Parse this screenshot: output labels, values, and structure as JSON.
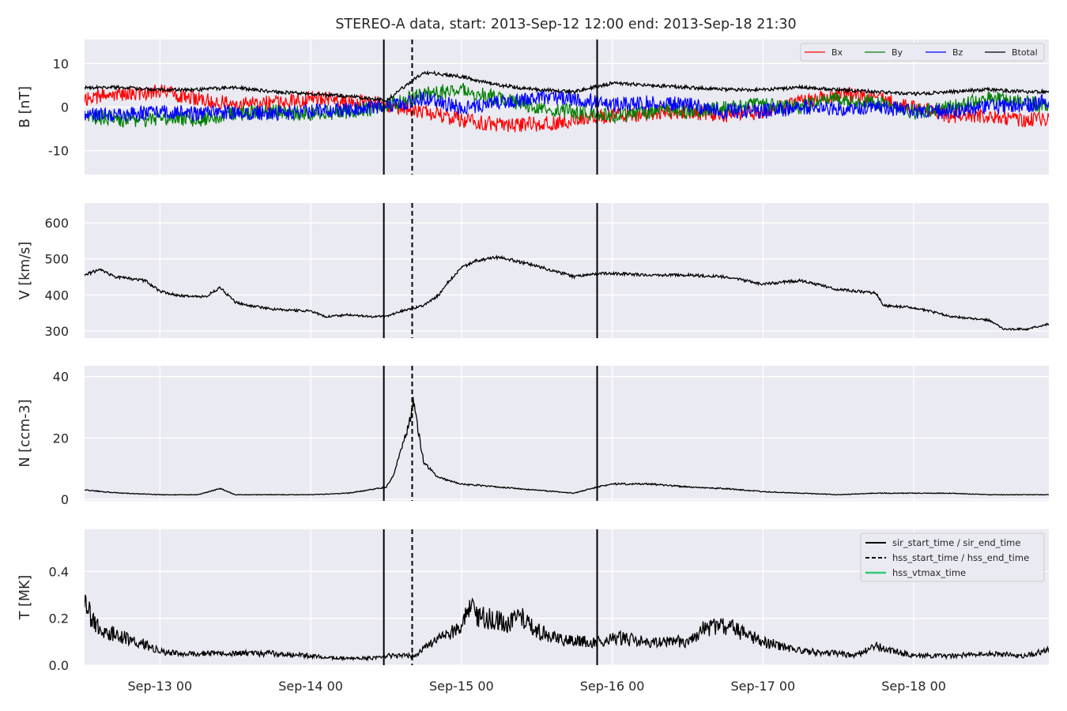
{
  "figure": {
    "title": "STEREO-A data, start: 2013-Sep-12 12:00  end: 2013-Sep-18 21:30"
  },
  "colors": {
    "panel_bg": "#EAEAF2",
    "grid": "#FFFFFF",
    "Bx": "#FF0000",
    "By": "#008000",
    "Bz": "#0000FF",
    "Btotal": "#000000",
    "hss_vtmax": "#2ECC71"
  },
  "chart_data": [
    {
      "type": "line",
      "panel": "B",
      "ylabel": "B [nT]",
      "ylim": [
        -15.5,
        15.5
      ],
      "yticks": [
        -10,
        0,
        10
      ],
      "legend_position": "top-right",
      "legend": [
        "Bx",
        "By",
        "Bz",
        "Btotal"
      ],
      "series": [
        {
          "name": "Bx",
          "color": "#FF0000",
          "x": [
            12.5,
            12.75,
            13.0,
            13.25,
            13.5,
            13.75,
            14.0,
            14.25,
            14.5,
            14.75,
            15.0,
            15.25,
            15.5,
            15.75,
            16.0,
            16.25,
            16.5,
            16.75,
            17.0,
            17.25,
            17.5,
            17.75,
            18.0,
            18.25,
            18.5,
            18.75,
            18.9
          ],
          "y": [
            2,
            3,
            3.5,
            2,
            0.5,
            1,
            2,
            1.5,
            0.5,
            -1,
            -3,
            -4,
            -4,
            -3,
            -2,
            -1.5,
            -1,
            -2,
            -1,
            1,
            3,
            2,
            0,
            -2,
            -2,
            -3,
            -2.5
          ]
        },
        {
          "name": "By",
          "color": "#008000",
          "x": [
            12.5,
            12.75,
            13.0,
            13.25,
            13.5,
            13.75,
            14.0,
            14.25,
            14.5,
            14.75,
            15.0,
            15.25,
            15.5,
            15.75,
            16.0,
            16.25,
            16.5,
            16.75,
            17.0,
            17.25,
            17.5,
            17.75,
            18.0,
            18.25,
            18.5,
            18.75,
            18.9
          ],
          "y": [
            -2,
            -3,
            -2.5,
            -3,
            -1.5,
            -1,
            -1.5,
            -1,
            0,
            3,
            4,
            2,
            0,
            -1,
            -2,
            -1,
            -1,
            0,
            0.5,
            0,
            2,
            1,
            -1,
            0,
            2,
            1,
            0
          ]
        },
        {
          "name": "Bz",
          "color": "#0000FF",
          "x": [
            12.5,
            12.75,
            13.0,
            13.25,
            13.5,
            13.75,
            14.0,
            14.25,
            14.5,
            14.75,
            15.0,
            15.25,
            15.5,
            15.75,
            16.0,
            16.25,
            16.5,
            16.75,
            17.0,
            17.25,
            17.5,
            17.75,
            18.0,
            18.25,
            18.5,
            18.75,
            18.9
          ],
          "y": [
            -1.5,
            -2,
            -1,
            -1.5,
            -1,
            -1.5,
            -1,
            -0.5,
            0,
            2,
            0,
            1,
            2,
            2,
            0.5,
            1,
            0.5,
            -1,
            -1,
            0,
            -0.5,
            0,
            -1,
            -1,
            0,
            0.5,
            1.5
          ]
        },
        {
          "name": "Btotal",
          "color": "#000000",
          "x": [
            12.5,
            12.75,
            13.0,
            13.25,
            13.5,
            13.75,
            14.0,
            14.25,
            14.5,
            14.75,
            15.0,
            15.25,
            15.5,
            15.75,
            16.0,
            16.25,
            16.5,
            16.75,
            17.0,
            17.25,
            17.5,
            17.75,
            18.0,
            18.25,
            18.5,
            18.75,
            18.9
          ],
          "y": [
            4.5,
            4.5,
            4,
            4,
            4.5,
            3.5,
            3,
            2.5,
            1.5,
            8,
            7,
            5,
            4,
            3.5,
            5.5,
            5,
            4.5,
            4,
            4,
            4.5,
            4,
            3.5,
            3,
            3.5,
            4,
            3.5,
            3.5
          ]
        }
      ]
    },
    {
      "type": "line",
      "panel": "V",
      "ylabel": "V [km/s]",
      "ylim": [
        280,
        655
      ],
      "yticks": [
        300,
        400,
        500,
        600
      ],
      "series": [
        {
          "name": "",
          "color": "#000000",
          "x": [
            12.5,
            12.6,
            12.7,
            12.8,
            12.9,
            13.0,
            13.1,
            13.2,
            13.3,
            13.4,
            13.5,
            13.6,
            13.75,
            14.0,
            14.1,
            14.25,
            14.4,
            14.5,
            14.6,
            14.75,
            14.85,
            14.9,
            15.0,
            15.1,
            15.25,
            15.5,
            15.75,
            15.9,
            16.0,
            16.25,
            16.5,
            16.75,
            17.0,
            17.25,
            17.5,
            17.75,
            17.8,
            18.0,
            18.25,
            18.5,
            18.6,
            18.75,
            18.9
          ],
          "y": [
            455,
            470,
            450,
            445,
            440,
            410,
            400,
            395,
            395,
            420,
            380,
            370,
            360,
            355,
            340,
            345,
            340,
            340,
            355,
            370,
            400,
            430,
            475,
            495,
            505,
            480,
            450,
            460,
            460,
            455,
            455,
            450,
            430,
            440,
            415,
            405,
            370,
            365,
            340,
            330,
            305,
            305,
            320
          ]
        }
      ]
    },
    {
      "type": "line",
      "panel": "N",
      "ylabel": "N [ccm-3]",
      "ylim": [
        -0.5,
        43.5
      ],
      "yticks": [
        0,
        20,
        40
      ],
      "series": [
        {
          "name": "",
          "color": "#000000",
          "x": [
            12.5,
            12.75,
            13.0,
            13.25,
            13.4,
            13.5,
            13.75,
            14.0,
            14.25,
            14.5,
            14.55,
            14.6,
            14.65,
            14.68,
            14.7,
            14.75,
            14.85,
            15.0,
            15.25,
            15.5,
            15.75,
            15.9,
            16.0,
            16.25,
            16.5,
            16.75,
            17.0,
            17.25,
            17.5,
            17.75,
            18.0,
            18.25,
            18.5,
            18.9
          ],
          "y": [
            3,
            2,
            1.5,
            1.5,
            3.5,
            1.5,
            1.5,
            1.5,
            2,
            4,
            8,
            16,
            24,
            32,
            26,
            12,
            7,
            5,
            4,
            3,
            2,
            4,
            5,
            5,
            4,
            3.5,
            2.5,
            2,
            1.5,
            2,
            2,
            2,
            1.5,
            1.5
          ]
        }
      ]
    },
    {
      "type": "line",
      "panel": "T",
      "ylabel": "T [MK]",
      "ylim": [
        0,
        0.58
      ],
      "yticks": [
        0.0,
        0.2,
        0.4
      ],
      "ytick_labels": [
        "0.0",
        "0.2",
        "0.4"
      ],
      "legend_position": "top-right",
      "legend": [
        "sir_start_time / sir_end_time",
        "hss_start_time / hss_end_time",
        "hss_vtmax_time"
      ],
      "series": [
        {
          "name": "",
          "color": "#000000",
          "x": [
            12.5,
            12.6,
            12.75,
            12.9,
            13.0,
            13.1,
            13.25,
            13.5,
            13.75,
            14.0,
            14.25,
            14.4,
            14.5,
            14.6,
            14.7,
            14.8,
            14.9,
            15.0,
            15.05,
            15.1,
            15.2,
            15.3,
            15.4,
            15.5,
            15.6,
            15.75,
            15.9,
            16.0,
            16.25,
            16.4,
            16.5,
            16.6,
            16.75,
            17.0,
            17.25,
            17.5,
            17.6,
            17.75,
            18.0,
            18.25,
            18.5,
            18.75,
            18.9
          ],
          "y": [
            0.25,
            0.15,
            0.12,
            0.09,
            0.06,
            0.05,
            0.05,
            0.05,
            0.05,
            0.04,
            0.03,
            0.03,
            0.04,
            0.04,
            0.04,
            0.1,
            0.13,
            0.15,
            0.25,
            0.2,
            0.2,
            0.17,
            0.2,
            0.15,
            0.12,
            0.1,
            0.1,
            0.12,
            0.1,
            0.11,
            0.09,
            0.15,
            0.17,
            0.1,
            0.06,
            0.05,
            0.04,
            0.08,
            0.04,
            0.04,
            0.05,
            0.04,
            0.07
          ]
        }
      ]
    }
  ],
  "x_axis": {
    "range": [
      12.5,
      18.896
    ],
    "ticks": [
      13,
      14,
      15,
      16,
      17,
      18
    ],
    "tick_labels": [
      "Sep-13 00",
      "Sep-14 00",
      "Sep-15 00",
      "Sep-16 00",
      "Sep-17 00",
      "Sep-18 00"
    ]
  },
  "event_lines": [
    {
      "x": 14.485,
      "style": "solid"
    },
    {
      "x": 14.673,
      "style": "dashed"
    },
    {
      "x": 15.9,
      "style": "solid"
    }
  ]
}
